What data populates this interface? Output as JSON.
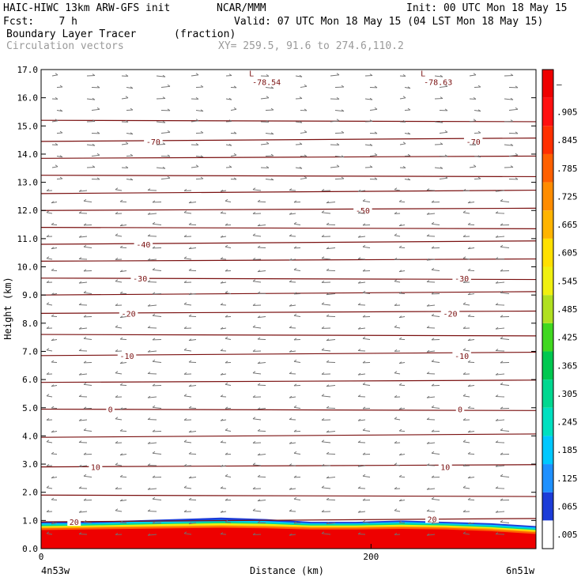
{
  "header": {
    "model_line": "HAIC-HIWC 13km ARW-GFS init",
    "org": "NCAR/MMM",
    "init": "Init: 00 UTC Mon 18 May 15",
    "fcst": "Fcst:    7 h",
    "valid": "Valid: 07 UTC Mon 18 May 15 (04 LST Mon 18 May 15)",
    "field": "Boundary Layer Tracer",
    "units": "(fraction)",
    "vectors": "Circulation vectors",
    "xy": "XY= 259.5, 91.6 to 274.6,110.2"
  },
  "chart_data": {
    "type": "heatmap",
    "xlabel": "Distance (km)",
    "ylabel": "Height (km)",
    "xlim": [
      0,
      300
    ],
    "ylim": [
      0,
      17
    ],
    "x_ticks": [
      0,
      200
    ],
    "x_tick_labels": [
      "0",
      "200"
    ],
    "y_ticks": [
      0,
      1,
      2,
      3,
      4,
      5,
      6,
      7,
      8,
      9,
      10,
      11,
      12,
      13,
      14,
      15,
      16,
      17
    ],
    "y_tick_labels": [
      "0.0",
      "1.0",
      "2.0",
      "3.0",
      "4.0",
      "5.0",
      "6.0",
      "7.0",
      "8.0",
      "9.0",
      "10.0",
      "11.0",
      "12.0",
      "13.0",
      "14.0",
      "15.0",
      "16.0",
      "17.0"
    ],
    "left_endpoint": "4n53w",
    "right_endpoint": "6n51w",
    "colorbar": {
      "labels": [
        ".005",
        ".065",
        ".125",
        ".185",
        ".245",
        ".305",
        ".365",
        ".425",
        ".485",
        ".545",
        ".605",
        ".665",
        ".725",
        ".785",
        ".845",
        ".905",
        "–"
      ],
      "colors": [
        "#ffffff",
        "#1c3cd8",
        "#1e90ff",
        "#00c8ff",
        "#00e0c0",
        "#00d890",
        "#00c850",
        "#40d820",
        "#b0e020",
        "#f0f010",
        "#ffe000",
        "#ffb400",
        "#ff8c00",
        "#ff6000",
        "#ff3000",
        "#ff1010",
        "#ee0000"
      ]
    },
    "temperature_contours": [
      {
        "label": "-78.54",
        "low_label": "L",
        "x": 128,
        "y": 16.7
      },
      {
        "label": "-78.63",
        "low_label": "L",
        "x": 232,
        "y": 16.7
      },
      {
        "label": "-70",
        "x": 68,
        "y": 14.45
      },
      {
        "label": "-70",
        "x": 262,
        "y": 14.45
      },
      {
        "label": "-50",
        "x": 195,
        "y": 12.0
      },
      {
        "label": "-40",
        "x": 62,
        "y": 10.8
      },
      {
        "label": "-30",
        "x": 60,
        "y": 9.6
      },
      {
        "label": "-30",
        "x": 255,
        "y": 9.6
      },
      {
        "label": "-20",
        "x": 53,
        "y": 8.35
      },
      {
        "label": "-20",
        "x": 248,
        "y": 8.35
      },
      {
        "label": "-10",
        "x": 52,
        "y": 6.85
      },
      {
        "label": "-10",
        "x": 255,
        "y": 6.85
      },
      {
        "label": "0",
        "x": 42,
        "y": 4.95
      },
      {
        "label": "0",
        "x": 254,
        "y": 4.95
      },
      {
        "label": "10",
        "x": 33,
        "y": 2.9
      },
      {
        "label": "10",
        "x": 245,
        "y": 2.9
      },
      {
        "label": "20",
        "x": 20,
        "y": 0.95
      },
      {
        "label": "20",
        "x": 237,
        "y": 1.05
      }
    ],
    "contour_levels_km": [
      0.95,
      1.9,
      2.9,
      3.95,
      4.95,
      5.9,
      6.85,
      7.6,
      8.35,
      9.0,
      9.6,
      10.2,
      10.8,
      11.4,
      12.0,
      12.6,
      13.25,
      13.85,
      14.45,
      15.2
    ]
  }
}
